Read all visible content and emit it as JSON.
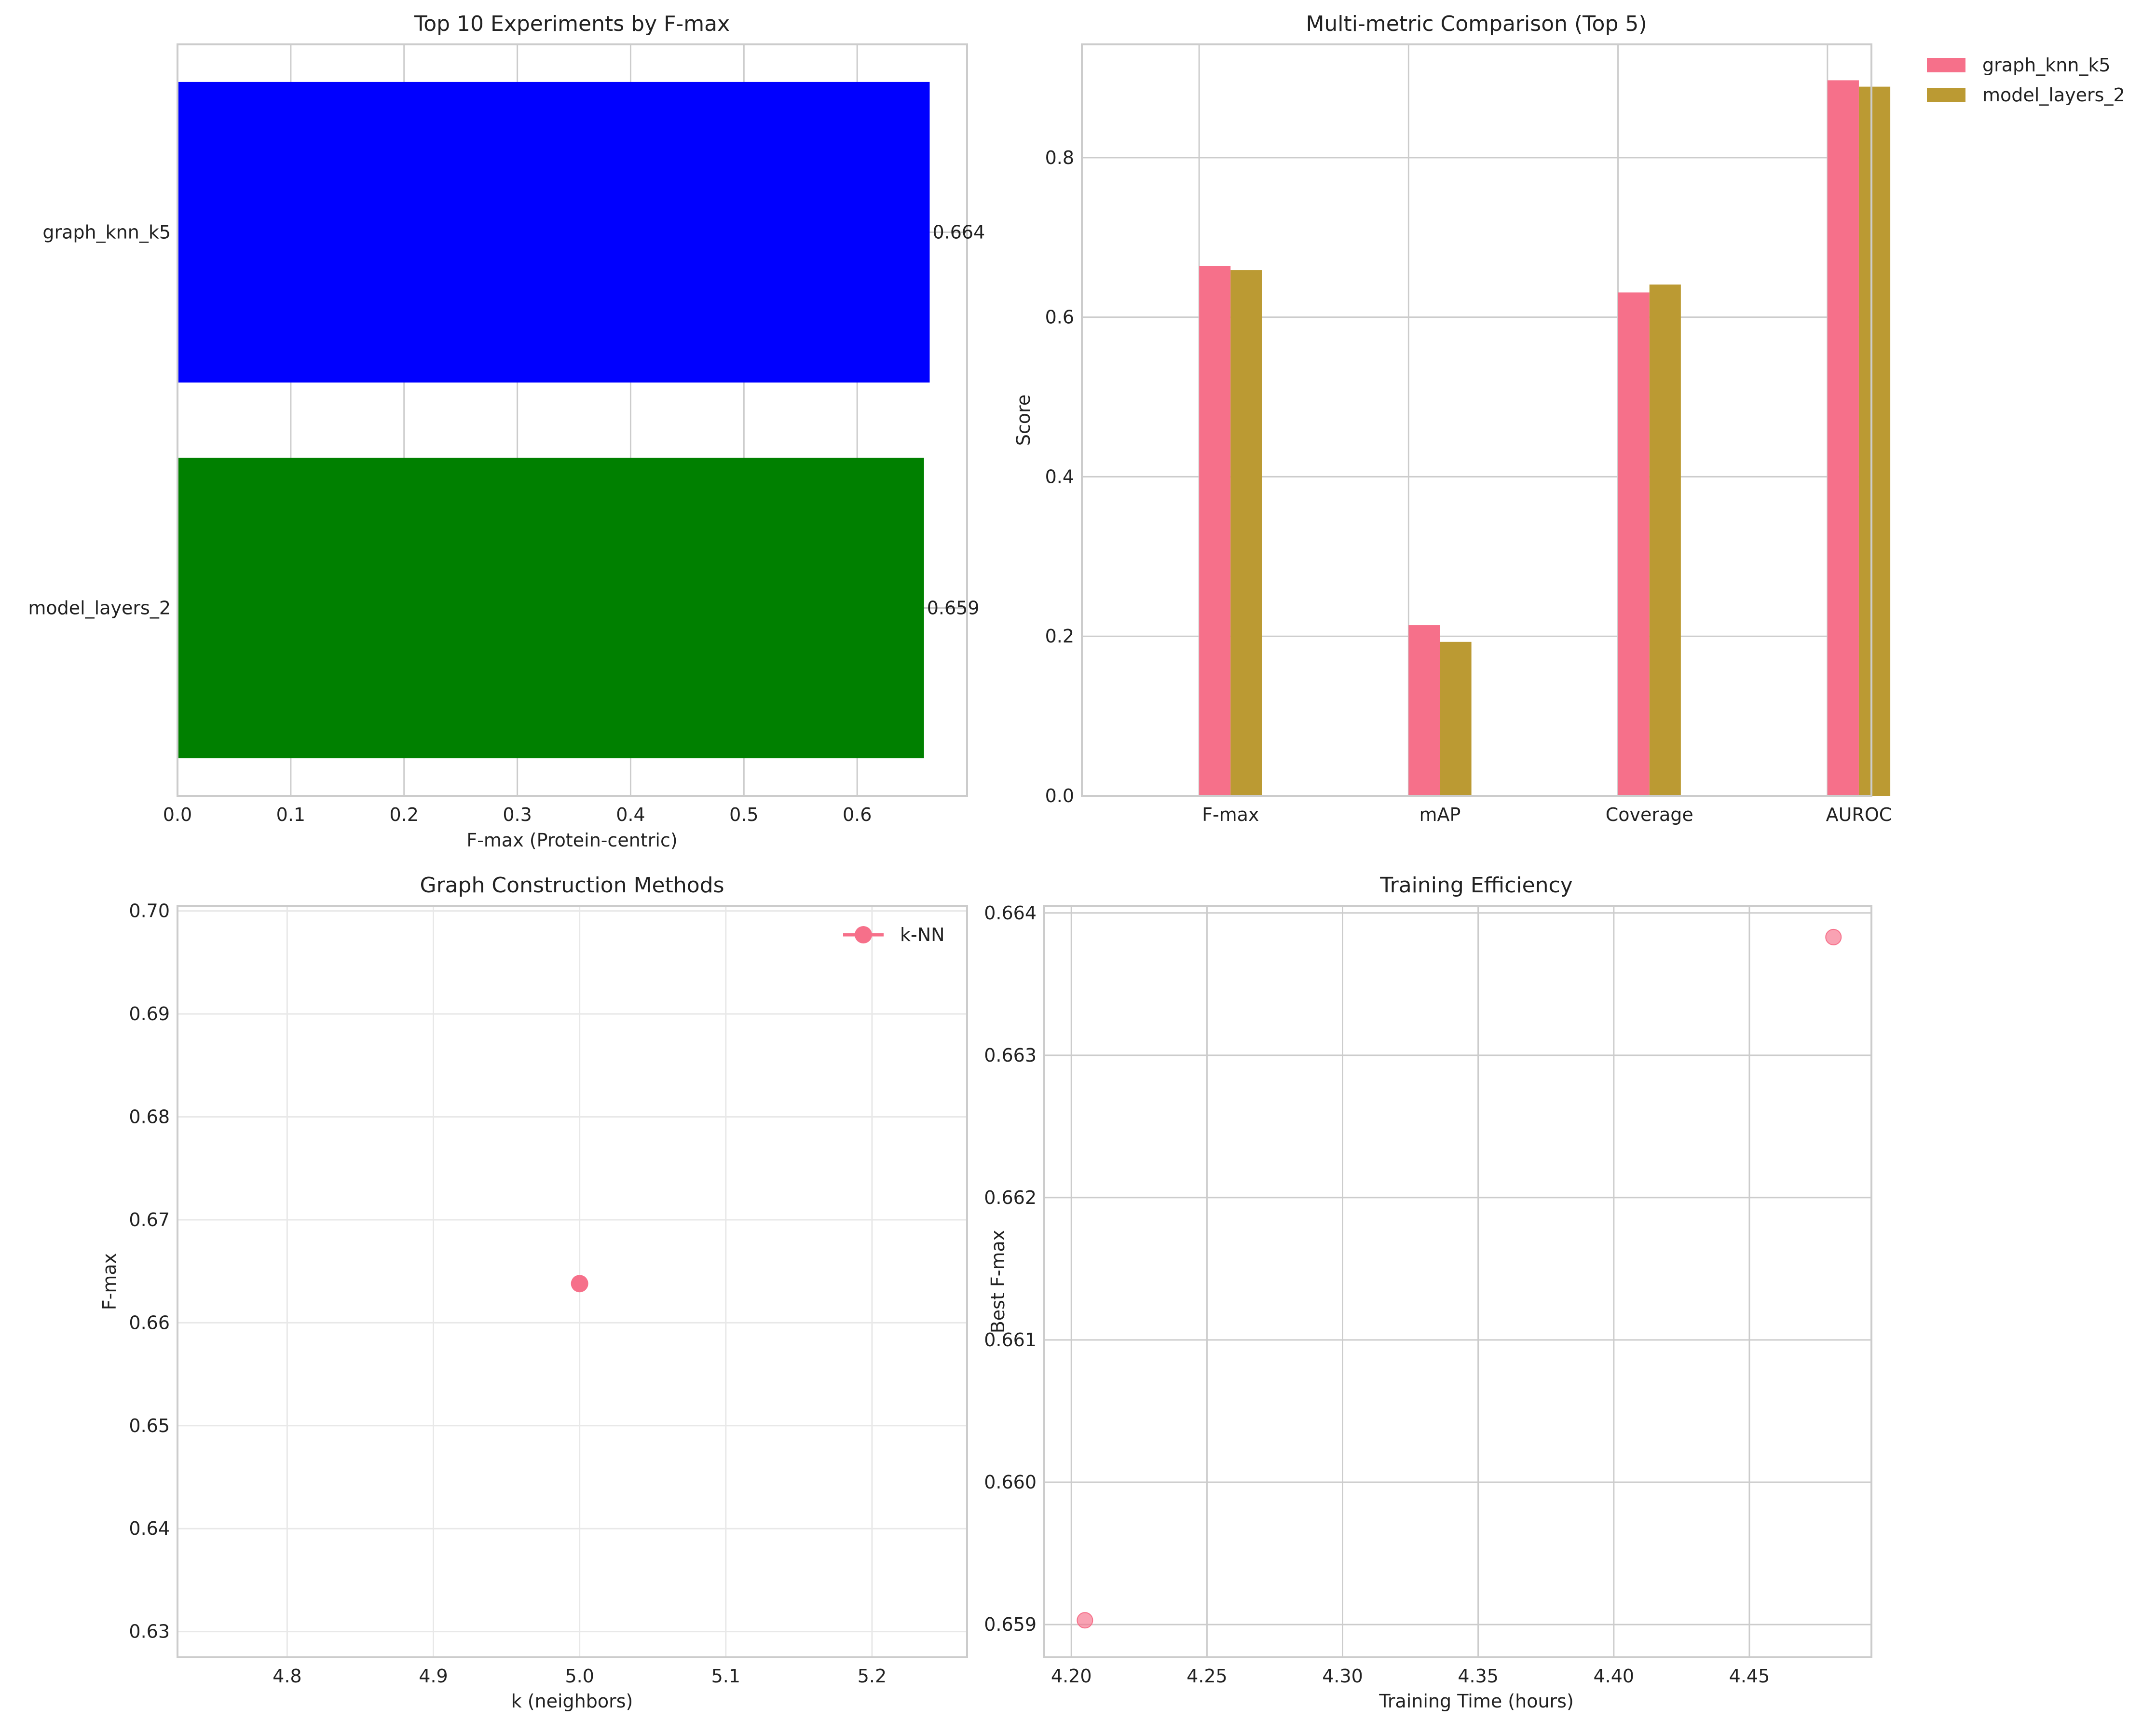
{
  "colors": {
    "blue": "#0000ff",
    "green": "#008000",
    "pink": "#f6708a",
    "olive": "#bb9a33"
  },
  "chart_data": [
    {
      "type": "bar",
      "orientation": "horizontal",
      "title": "Top 10 Experiments by F-max",
      "xlabel": "F-max (Protein-centric)",
      "ylabel": "",
      "categories": [
        "graph_knn_k5",
        "model_layers_2"
      ],
      "values": [
        0.664,
        0.659
      ],
      "value_labels": [
        "0.664",
        "0.659"
      ],
      "bar_colors": [
        "#0000ff",
        "#008000"
      ],
      "xlim": [
        0,
        0.697
      ],
      "xticks": [
        0.0,
        0.1,
        0.2,
        0.3,
        0.4,
        0.5,
        0.6
      ],
      "xtick_labels": [
        "0.0",
        "0.1",
        "0.2",
        "0.3",
        "0.4",
        "0.5",
        "0.6"
      ],
      "grid": true
    },
    {
      "type": "bar",
      "title": "Multi-metric Comparison (Top 5)",
      "xlabel": "",
      "ylabel": "Score",
      "categories": [
        "F-max",
        "mAP",
        "Coverage",
        "AUROC"
      ],
      "series": [
        {
          "name": "graph_knn_k5",
          "values": [
            0.664,
            0.214,
            0.631,
            0.897
          ],
          "color": "#f6708a"
        },
        {
          "name": "model_layers_2",
          "values": [
            0.659,
            0.193,
            0.641,
            0.889
          ],
          "color": "#bb9a33"
        }
      ],
      "ylim": [
        0,
        0.942
      ],
      "yticks": [
        0.0,
        0.2,
        0.4,
        0.6,
        0.8
      ],
      "ytick_labels": [
        "0.0",
        "0.2",
        "0.4",
        "0.6",
        "0.8"
      ],
      "legend": "outside-top-right",
      "grid": true
    },
    {
      "type": "line",
      "title": "Graph Construction Methods",
      "xlabel": "k (neighbors)",
      "ylabel": "F-max",
      "series": [
        {
          "name": "k-NN",
          "x": [
            5.0
          ],
          "y": [
            0.6638
          ],
          "color": "#f6708a"
        }
      ],
      "xlim": [
        4.725,
        5.265
      ],
      "ylim": [
        0.6275,
        0.7005
      ],
      "xticks": [
        4.8,
        4.9,
        5.0,
        5.1,
        5.2
      ],
      "xtick_labels": [
        "4.8",
        "4.9",
        "5.0",
        "5.1",
        "5.2"
      ],
      "yticks": [
        0.63,
        0.64,
        0.65,
        0.66,
        0.67,
        0.68,
        0.69,
        0.7
      ],
      "ytick_labels": [
        "0.63",
        "0.64",
        "0.65",
        "0.66",
        "0.67",
        "0.68",
        "0.69",
        "0.70"
      ],
      "legend": "top-right",
      "grid": true
    },
    {
      "type": "scatter",
      "title": "Training Efficiency",
      "xlabel": "Training Time (hours)",
      "ylabel": "Best F-max",
      "points": [
        {
          "x": 4.205,
          "y": 0.65903
        },
        {
          "x": 4.481,
          "y": 0.66383
        }
      ],
      "point_color": "#f6708a",
      "xlim": [
        4.19,
        4.495
      ],
      "ylim": [
        0.65877,
        0.66405
      ],
      "xticks": [
        4.2,
        4.25,
        4.3,
        4.35,
        4.4,
        4.45
      ],
      "xtick_labels": [
        "4.20",
        "4.25",
        "4.30",
        "4.35",
        "4.40",
        "4.45"
      ],
      "yticks": [
        0.659,
        0.66,
        0.661,
        0.662,
        0.663,
        0.664
      ],
      "ytick_labels": [
        "0.659",
        "0.660",
        "0.661",
        "0.662",
        "0.663",
        "0.664"
      ],
      "grid": true
    }
  ]
}
